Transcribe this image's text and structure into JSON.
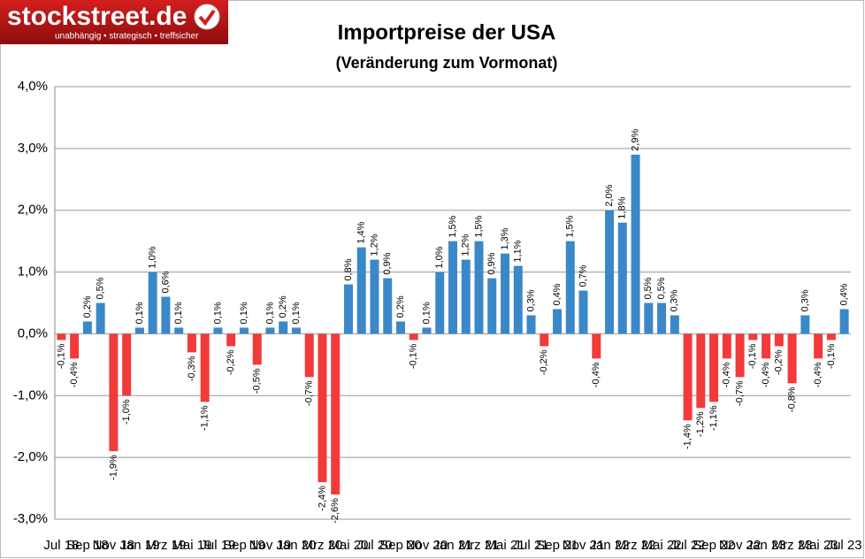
{
  "logo": {
    "name": "stockstreet.de",
    "tagline": "unabhängig • strategisch • treffsicher"
  },
  "chart_data": {
    "type": "bar",
    "title": "Importpreise der USA",
    "subtitle": "(Veränderung zum Vormonat)",
    "categories": [
      "Jul 18",
      null,
      "Sep 18",
      null,
      "Nov 18",
      null,
      "Jan 19",
      null,
      "Mrz 19",
      null,
      "Mai 19",
      null,
      "Jul 19",
      null,
      "Sep 19",
      null,
      "Nov 19",
      null,
      "Jan 20",
      null,
      "Mrz 20",
      null,
      "Mai 20",
      null,
      "Jul 20",
      null,
      "Sep 20",
      null,
      "Nov 20",
      null,
      "Jan 21",
      null,
      "Mrz 21",
      null,
      "Mai 21",
      null,
      "Jul 21",
      null,
      "Sep 21",
      null,
      "Nov 21",
      null,
      "Jan 22",
      null,
      "Mrz 22",
      null,
      "Mai 22",
      null,
      "Jul 22",
      null,
      "Sep 22",
      null,
      "Nov 22",
      null,
      "Jan 23",
      null,
      "Mrz 23",
      null,
      "Mai 23",
      null,
      "Jul 23"
    ],
    "values": [
      -0.1,
      -0.4,
      0.2,
      0.5,
      -1.9,
      -1.0,
      0.1,
      1.0,
      0.6,
      0.1,
      -0.3,
      -1.1,
      0.1,
      -0.2,
      0.1,
      -0.5,
      0.1,
      0.2,
      0.1,
      -0.7,
      -2.4,
      -2.6,
      0.8,
      1.4,
      1.2,
      0.9,
      0.2,
      -0.1,
      0.1,
      1.0,
      1.5,
      1.2,
      1.5,
      0.9,
      1.3,
      1.1,
      0.3,
      -0.2,
      0.4,
      1.5,
      0.7,
      -0.4,
      2.0,
      1.8,
      2.9,
      0.5,
      0.5,
      0.3,
      -1.4,
      -1.2,
      -1.1,
      -0.4,
      -0.7,
      -0.1,
      -0.4,
      -0.2,
      -0.8,
      0.3,
      -0.4,
      -0.1,
      0.4
    ],
    "value_labels": [
      "-0,1%",
      "-0,4%",
      "0,2%",
      "0,5%",
      "-1,9%",
      "-1,0%",
      "0,1%",
      "1,0%",
      "0,6%",
      "0,1%",
      "-0,3%",
      "-1,1%",
      "0,1%",
      "-0,2%",
      "0,1%",
      "-0,5%",
      "0,1%",
      "0,2%",
      "0,1%",
      "-0,7%",
      "-2,4%",
      "-2,6%",
      "0,8%",
      "1,4%",
      "1,2%",
      "0,9%",
      "0,2%",
      "-0,1%",
      "0,1%",
      "1,0%",
      "1,5%",
      "1,2%",
      "1,5%",
      "0,9%",
      "1,3%",
      "1,1%",
      "0,3%",
      "-0,2%",
      "0,4%",
      "1,5%",
      "0,7%",
      "-0,4%",
      "2,0%",
      "1,8%",
      "2,9%",
      "0,5%",
      "0,5%",
      "0,3%",
      "-1,4%",
      "-1,2%",
      "-1,1%",
      "-0,4%",
      "-0,7%",
      "-0,1%",
      "-0,4%",
      "-0,2%",
      "-0,8%",
      "0,3%",
      "-0,4%",
      "-0,1%",
      "0,4%"
    ],
    "positive_color": "#3b88c9",
    "negative_color": "#f23a3a",
    "ylim": [
      -3,
      4
    ],
    "yticks": [
      {
        "value": -3,
        "label": "-3,0%"
      },
      {
        "value": -2,
        "label": "-2,0%"
      },
      {
        "value": -1,
        "label": "-1,0%"
      },
      {
        "value": 0,
        "label": "0,0%"
      },
      {
        "value": 1,
        "label": "1,0%"
      },
      {
        "value": 2,
        "label": "2,0%"
      },
      {
        "value": 3,
        "label": "3,0%"
      },
      {
        "value": 4,
        "label": "4,0%"
      }
    ],
    "grid": true
  }
}
